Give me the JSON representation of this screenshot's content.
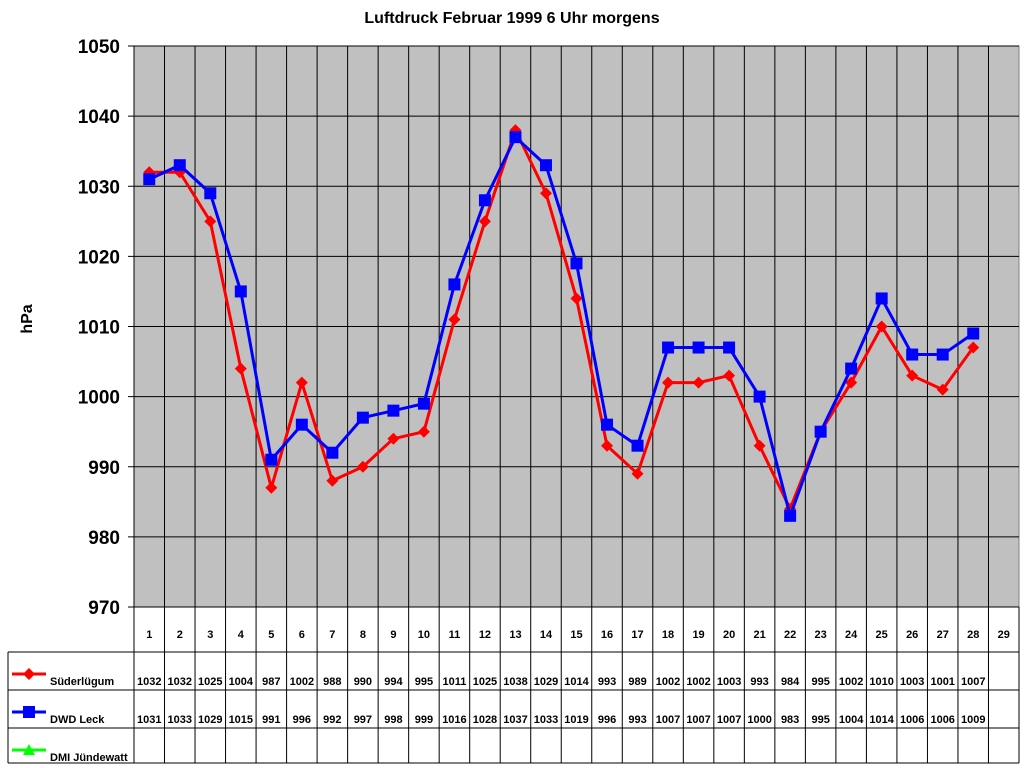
{
  "chart_data": {
    "type": "line",
    "title": "Luftdruck Februar 1999 6 Uhr morgens",
    "xlabel": "",
    "ylabel": "hPa",
    "ylim": [
      970,
      1050
    ],
    "yticks": [
      970,
      980,
      990,
      1000,
      1010,
      1020,
      1030,
      1040,
      1050
    ],
    "categories": [
      "1",
      "2",
      "3",
      "4",
      "5",
      "6",
      "7",
      "8",
      "9",
      "10",
      "11",
      "12",
      "13",
      "14",
      "15",
      "16",
      "17",
      "18",
      "19",
      "20",
      "21",
      "22",
      "23",
      "24",
      "25",
      "26",
      "27",
      "28",
      "29"
    ],
    "grid": true,
    "legend_position": "data-table-left",
    "series": [
      {
        "name": "Süderlügum",
        "color": "#ff0000",
        "marker": "diamond",
        "values": [
          1032,
          1032,
          1025,
          1004,
          987,
          1002,
          988,
          990,
          994,
          995,
          1011,
          1025,
          1038,
          1029,
          1014,
          993,
          989,
          1002,
          1002,
          1003,
          993,
          984,
          995,
          1002,
          1010,
          1003,
          1001,
          1007,
          null
        ]
      },
      {
        "name": "DWD Leck",
        "color": "#0000ff",
        "marker": "square",
        "values": [
          1031,
          1033,
          1029,
          1015,
          991,
          996,
          992,
          997,
          998,
          999,
          1016,
          1028,
          1037,
          1033,
          1019,
          996,
          993,
          1007,
          1007,
          1007,
          1000,
          983,
          995,
          1004,
          1014,
          1006,
          1006,
          1009,
          null
        ]
      },
      {
        "name": "DMI Jündewatt",
        "color": "#00ff00",
        "marker": "triangle",
        "values": [
          null,
          null,
          null,
          null,
          null,
          null,
          null,
          null,
          null,
          null,
          null,
          null,
          null,
          null,
          null,
          null,
          null,
          null,
          null,
          null,
          null,
          null,
          null,
          null,
          null,
          null,
          null,
          null,
          null
        ]
      }
    ]
  }
}
